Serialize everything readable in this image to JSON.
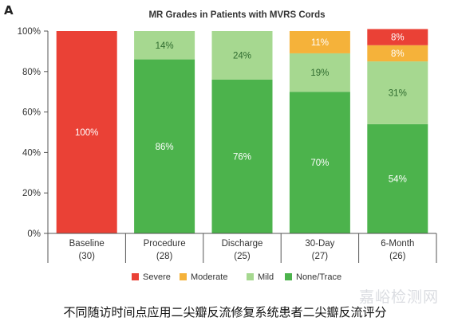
{
  "panel_label": "A",
  "caption": "不同随访时间点应用二尖瓣反流修复系统患者二尖瓣反流评分",
  "watermark": "嘉峪检测网",
  "chart_data": {
    "type": "bar",
    "stacked": true,
    "title": "MR Grades in Patients with MVRS Cords",
    "xlabel": "",
    "ylabel": "",
    "ylim": [
      0,
      100
    ],
    "yticks": [
      "0%",
      "20%",
      "40%",
      "60%",
      "80%",
      "100%"
    ],
    "categories": [
      {
        "name": "Baseline",
        "n": "(30)"
      },
      {
        "name": "Procedure",
        "n": "(28)"
      },
      {
        "name": "Discharge",
        "n": "(25)"
      },
      {
        "name": "30-Day",
        "n": "(27)"
      },
      {
        "name": "6-Month",
        "n": "(26)"
      }
    ],
    "series": [
      {
        "name": "None/Trace",
        "color": "#4cb34c",
        "values": [
          0,
          86,
          76,
          70,
          54
        ]
      },
      {
        "name": "Mild",
        "color": "#a6d890",
        "values": [
          0,
          14,
          24,
          19,
          31
        ]
      },
      {
        "name": "Moderate",
        "color": "#f5b23a",
        "values": [
          0,
          0,
          0,
          11,
          8
        ]
      },
      {
        "name": "Severe",
        "color": "#ea4136",
        "values": [
          100,
          0,
          0,
          0,
          8
        ]
      }
    ],
    "data_labels": [
      [
        "",
        "86%",
        "76%",
        "70%",
        "54%"
      ],
      [
        "",
        "14%",
        "24%",
        "19%",
        "31%"
      ],
      [
        "",
        "",
        "",
        "11%",
        "8%"
      ],
      [
        "100%",
        "",
        "",
        "",
        "8%"
      ]
    ],
    "legend": [
      "Severe",
      "Moderate",
      "Mild",
      "None/Trace"
    ],
    "legend_position": "bottom",
    "grid": false
  }
}
